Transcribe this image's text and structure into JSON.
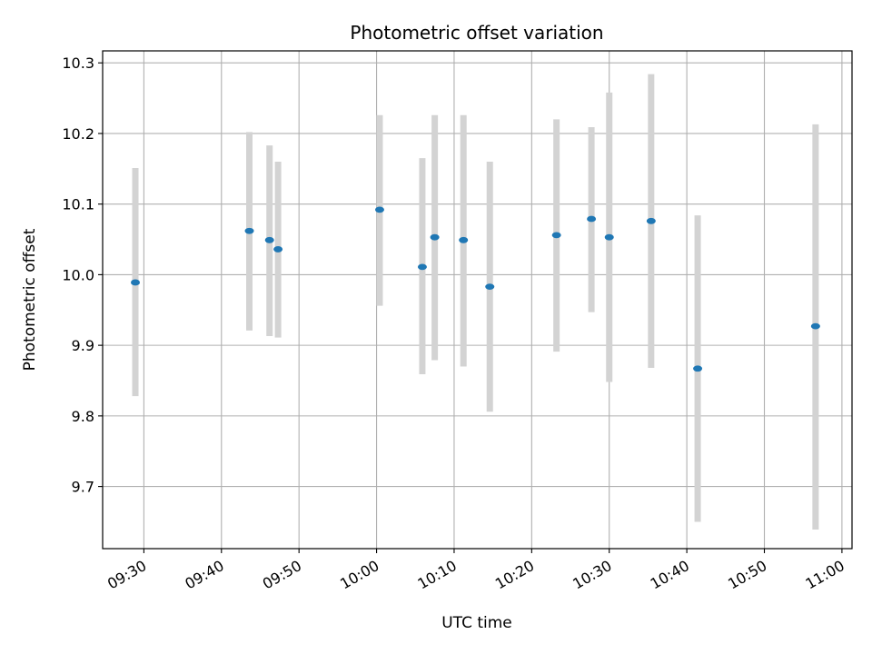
{
  "chart_data": {
    "type": "scatter",
    "title": "Photometric offset variation",
    "xlabel": "UTC time",
    "ylabel": "Photometric offset",
    "x_tick_labels": [
      "09:30",
      "09:40",
      "09:50",
      "10:00",
      "10:10",
      "10:20",
      "10:30",
      "10:40",
      "10:50",
      "11:00"
    ],
    "y_ticks": [
      9.7,
      9.8,
      9.9,
      10.0,
      10.1,
      10.2,
      10.3
    ],
    "y_tick_labels": [
      "9.7",
      "9.8",
      "9.9",
      "10.0",
      "10.1",
      "10.2",
      "10.3"
    ],
    "xlim": [
      "09:24:41",
      "11:01:18"
    ],
    "ylim": [
      9.612,
      10.317
    ],
    "grid": true,
    "marker_color": "#1f77b4",
    "errorbar_color": "#d3d3d3",
    "points": [
      {
        "x": "09:28:54",
        "y": 9.989,
        "ymin": 9.828,
        "ymax": 10.151
      },
      {
        "x": "09:43:36",
        "y": 10.062,
        "ymin": 9.921,
        "ymax": 10.202
      },
      {
        "x": "09:46:12",
        "y": 10.049,
        "ymin": 9.913,
        "ymax": 10.183
      },
      {
        "x": "09:47:18",
        "y": 10.036,
        "ymin": 9.911,
        "ymax": 10.16
      },
      {
        "x": "10:00:24",
        "y": 10.092,
        "ymin": 9.956,
        "ymax": 10.226
      },
      {
        "x": "10:05:54",
        "y": 10.011,
        "ymin": 9.859,
        "ymax": 10.165
      },
      {
        "x": "10:07:30",
        "y": 10.053,
        "ymin": 9.879,
        "ymax": 10.226
      },
      {
        "x": "10:11:12",
        "y": 10.049,
        "ymin": 9.87,
        "ymax": 10.226
      },
      {
        "x": "10:14:36",
        "y": 9.983,
        "ymin": 9.806,
        "ymax": 10.16
      },
      {
        "x": "10:23:12",
        "y": 10.056,
        "ymin": 9.891,
        "ymax": 10.22
      },
      {
        "x": "10:27:42",
        "y": 10.079,
        "ymin": 9.947,
        "ymax": 10.209
      },
      {
        "x": "10:30:00",
        "y": 10.053,
        "ymin": 9.848,
        "ymax": 10.258
      },
      {
        "x": "10:35:24",
        "y": 10.076,
        "ymin": 9.868,
        "ymax": 10.284
      },
      {
        "x": "10:41:24",
        "y": 9.867,
        "ymin": 9.65,
        "ymax": 10.084
      },
      {
        "x": "10:56:36",
        "y": 9.927,
        "ymin": 9.639,
        "ymax": 10.213
      }
    ]
  }
}
